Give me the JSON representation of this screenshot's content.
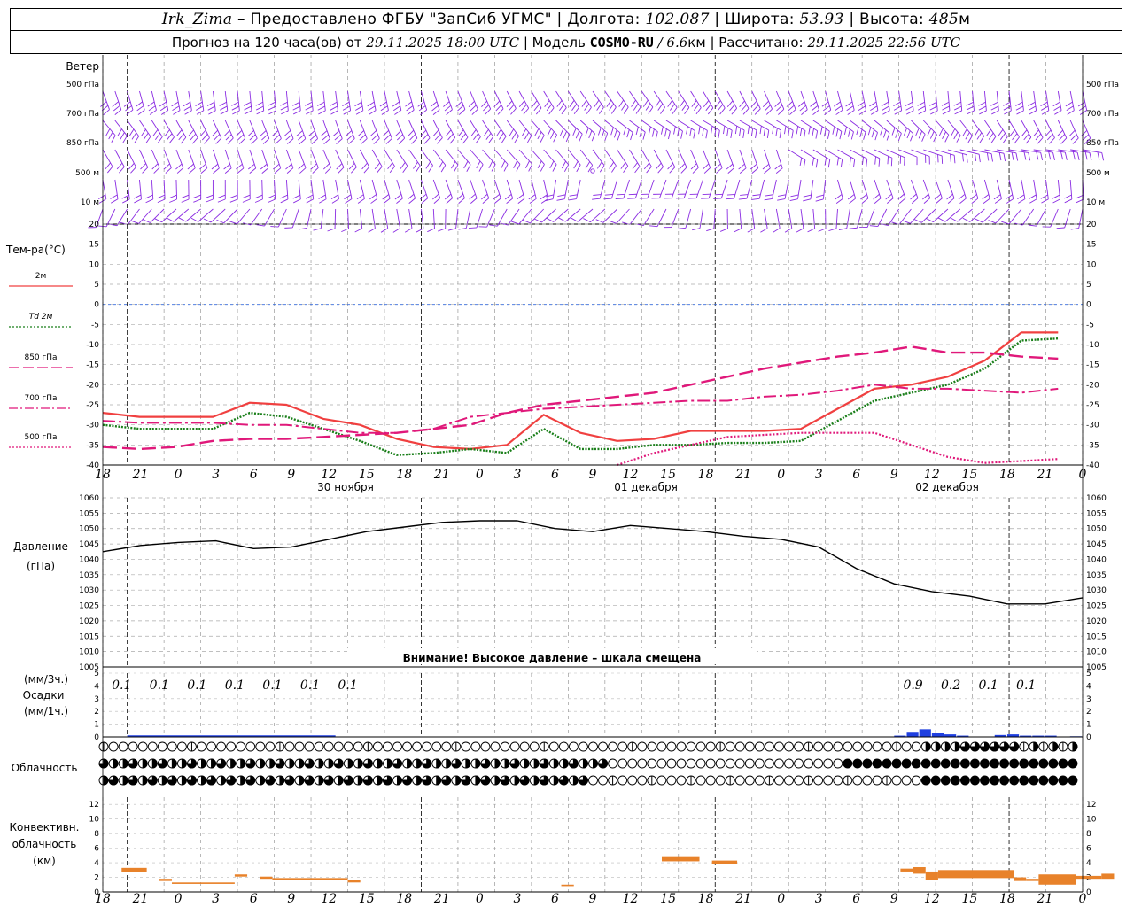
{
  "header": {
    "station": "Irk_Zima",
    "provider_text": " – Предоставлено ФГБУ \"ЗапСиб УГМС\" | Долгота: ",
    "lon": "102.087",
    "lat_label": " | Широта: ",
    "lat": "53.93",
    "alt_label": " | Высота: ",
    "alt": "485",
    "alt_unit": "м",
    "line2_a": "Прогноз на 120 часа(ов) от ",
    "forecast_from": "29.11.2025 18:00 UTC",
    "line2_b": " | Модель ",
    "model": "COSMO-RU",
    "model_res": " / 6.6",
    "model_res_unit": "км",
    "line2_c": " | Рассчитано: ",
    "computed": "29.11.2025 22:56 UTC"
  },
  "wind_panel": {
    "title": "Ветер",
    "levels": [
      "500 гПа",
      "700 гПа",
      "850 гПа",
      "500 м",
      "10 м"
    ],
    "barb_color": "#8a2be2"
  },
  "temp_panel": {
    "title": "Тем-ра(°C)",
    "legend": [
      {
        "label": "2м",
        "color": "#f04040",
        "style": "solid"
      },
      {
        "label": "Td  2м",
        "color": "#1a7f1a",
        "style": "dotted"
      },
      {
        "label": "850 гПа",
        "color": "#e0187a",
        "style": "dash"
      },
      {
        "label": "700 гПа",
        "color": "#e0187a",
        "style": "dashdot"
      },
      {
        "label": "500 гПа",
        "color": "#e0187a",
        "style": "dot"
      }
    ],
    "yticks": [
      "20",
      "15",
      "10",
      "5",
      "0",
      "-5",
      "-10",
      "-15",
      "-20",
      "-25",
      "-30",
      "-35",
      "-40"
    ]
  },
  "time_axis": {
    "hours": [
      "18",
      "21",
      "0",
      "3",
      "6",
      "9",
      "12",
      "15",
      "18",
      "21",
      "0",
      "3",
      "6",
      "9",
      "12",
      "15",
      "18",
      "21",
      "0",
      "3",
      "6",
      "9",
      "12",
      "15",
      "18",
      "21",
      "0"
    ],
    "dates": [
      "30 ноября",
      "01 декабря",
      "02 декабря"
    ]
  },
  "pressure_panel": {
    "title": "Давление",
    "unit": "(гПа)",
    "yticks": [
      "1060",
      "1055",
      "1050",
      "1045",
      "1040",
      "1035",
      "1030",
      "1025",
      "1020",
      "1015",
      "1010",
      "1005"
    ],
    "warning": "Внимание! Высокое давление – шкала смещена"
  },
  "precip_panel": {
    "unit3h": "(мм/3ч.)",
    "title": "Осадки",
    "unit1h": "(мм/1ч.)",
    "yticks": [
      "5",
      "4",
      "3",
      "2",
      "1",
      "0"
    ],
    "labels": [
      {
        "h": 1.5,
        "v": "0.1"
      },
      {
        "h": 4.5,
        "v": "0.1"
      },
      {
        "h": 7.5,
        "v": "0.1"
      },
      {
        "h": 10.5,
        "v": "0.1"
      },
      {
        "h": 13.5,
        "v": "0.1"
      },
      {
        "h": 16.5,
        "v": "0.1"
      },
      {
        "h": 19.5,
        "v": "0.1"
      },
      {
        "h": 64.5,
        "v": "0.9"
      },
      {
        "h": 67.5,
        "v": "0.2"
      },
      {
        "h": 70.5,
        "v": "0.1"
      },
      {
        "h": 73.5,
        "v": "0.1"
      }
    ],
    "bars": [
      [
        63,
        0.1
      ],
      [
        64,
        0.4
      ],
      [
        65,
        0.6
      ],
      [
        66,
        0.3
      ],
      [
        67,
        0.2
      ],
      [
        68,
        0.1
      ],
      [
        71,
        0.15
      ],
      [
        72,
        0.2
      ],
      [
        73,
        0.1
      ],
      [
        74,
        0.1
      ],
      [
        75,
        0.1
      ],
      [
        77,
        0.05
      ]
    ],
    "bar_color": "#1f3fe0"
  },
  "cloud_panel": {
    "title": "Облачность"
  },
  "conv_panel": {
    "title": [
      "Конвективн.",
      "облачность",
      "(км)"
    ],
    "yticks": [
      "12",
      "10",
      "8",
      "6",
      "4",
      "2",
      "0"
    ],
    "color": "#e8822a"
  },
  "chart_data": [
    {
      "type": "line",
      "title": "Тем-ра(°C)",
      "x_hours_from_start": [
        0,
        3,
        6,
        9,
        12,
        15,
        18,
        21,
        24,
        27,
        30,
        33,
        36,
        39,
        42,
        45,
        48,
        51,
        54,
        57,
        60,
        63,
        66,
        69,
        72,
        75,
        78
      ],
      "ylim": [
        -40,
        20
      ],
      "series": [
        {
          "name": "2м",
          "values": [
            -27,
            -28,
            -28,
            -28,
            -24.5,
            -25,
            -28.5,
            -30,
            -33.5,
            -35.5,
            -36,
            -35,
            -27.5,
            -32,
            -34,
            -33.5,
            -31.5,
            -31.5,
            -31.5,
            -31,
            -26,
            -21,
            -20,
            -18,
            -14,
            -7,
            -7
          ]
        },
        {
          "name": "Td  2м",
          "values": [
            -30,
            -31,
            -31,
            -31,
            -27,
            -28,
            -31,
            -34,
            -37.5,
            -37,
            -36,
            -37,
            -31,
            -36,
            -36,
            -35,
            -35,
            -34.5,
            -34.5,
            -34,
            -29,
            -24,
            -22,
            -20,
            -16,
            -9,
            -8.5
          ]
        },
        {
          "name": "850 гПа",
          "values": [
            -35.5,
            -36,
            -35.5,
            -34,
            -33.5,
            -33.5,
            -33,
            -32.5,
            -32,
            -31,
            -30,
            -27,
            -25,
            -24,
            -23,
            -22,
            -20,
            -18,
            -16,
            -14.5,
            -13,
            -12,
            -10.5,
            -12,
            -12,
            -13,
            -13.5
          ]
        },
        {
          "name": "700 гПа",
          "values": [
            -29,
            -29.5,
            -29.5,
            -29.5,
            -30,
            -30,
            -31,
            -32,
            -32,
            -31,
            -28,
            -27,
            -26,
            -25.5,
            -25,
            -24.5,
            -24,
            -24,
            -23,
            -22.5,
            -21.5,
            -20,
            -21,
            -21,
            -21.5,
            -22,
            -21
          ]
        },
        {
          "name": "500 гПа",
          "values": [
            null,
            null,
            null,
            null,
            null,
            null,
            null,
            null,
            null,
            null,
            null,
            null,
            null,
            null,
            -40,
            -37,
            -35,
            -33,
            -32.5,
            -32,
            -32,
            -32,
            -35,
            -38,
            -39.5,
            -39,
            -38.5
          ]
        }
      ]
    },
    {
      "type": "line",
      "title": "Давление",
      "x_hours_from_start": [
        0,
        3,
        6,
        9,
        12,
        15,
        18,
        21,
        24,
        27,
        30,
        33,
        36,
        39,
        42,
        45,
        48,
        51,
        54,
        57,
        60,
        63,
        66,
        69,
        72,
        75,
        78
      ],
      "ylim": [
        1005,
        1060
      ],
      "series": [
        {
          "name": "",
          "values": [
            1042.5,
            1044.5,
            1045.5,
            1046,
            1043.5,
            1044,
            1046.5,
            1049,
            1050.5,
            1052,
            1052.5,
            1052.5,
            1050,
            1049,
            1051,
            1050,
            1049,
            1047.5,
            1046.5,
            1044,
            1037,
            1032,
            1029.5,
            1028,
            1025.5,
            1025.5,
            1027.5
          ]
        }
      ]
    },
    {
      "type": "bar",
      "title": "Конвективн. облачность (км)",
      "ylim": [
        0,
        13
      ],
      "segments": [
        {
          "h0": 1.5,
          "h1": 3.5,
          "base": 2.7,
          "top": 3.3
        },
        {
          "h0": 4.5,
          "h1": 5.5,
          "base": 1.5,
          "top": 1.8
        },
        {
          "h0": 5.5,
          "h1": 10.5,
          "base": 1.1,
          "top": 1.3
        },
        {
          "h0": 10.5,
          "h1": 11.5,
          "base": 2.1,
          "top": 2.4
        },
        {
          "h0": 12.5,
          "h1": 13.5,
          "base": 1.8,
          "top": 2.1
        },
        {
          "h0": 13.5,
          "h1": 19.5,
          "base": 1.6,
          "top": 1.9
        },
        {
          "h0": 19.5,
          "h1": 20.5,
          "base": 1.3,
          "top": 1.6
        },
        {
          "h0": 36.5,
          "h1": 37.5,
          "base": 0.8,
          "top": 1.0
        },
        {
          "h0": 44.5,
          "h1": 47.5,
          "base": 4.2,
          "top": 4.9
        },
        {
          "h0": 48.5,
          "h1": 50.5,
          "base": 3.8,
          "top": 4.3
        },
        {
          "h0": 63.5,
          "h1": 64.5,
          "base": 2.8,
          "top": 3.2
        },
        {
          "h0": 64.5,
          "h1": 65.5,
          "base": 2.5,
          "top": 3.4
        },
        {
          "h0": 65.5,
          "h1": 66.5,
          "base": 1.7,
          "top": 2.8
        },
        {
          "h0": 66.5,
          "h1": 72.5,
          "base": 1.9,
          "top": 3.0
        },
        {
          "h0": 72.5,
          "h1": 73.5,
          "base": 1.5,
          "top": 2.0
        },
        {
          "h0": 73.5,
          "h1": 74.5,
          "base": 1.5,
          "top": 1.8
        },
        {
          "h0": 74.5,
          "h1": 77.5,
          "base": 1.0,
          "top": 2.4
        },
        {
          "h0": 77.5,
          "h1": 79.5,
          "base": 1.8,
          "top": 2.2
        },
        {
          "h0": 79.5,
          "h1": 80.5,
          "base": 1.8,
          "top": 2.5
        }
      ]
    }
  ]
}
